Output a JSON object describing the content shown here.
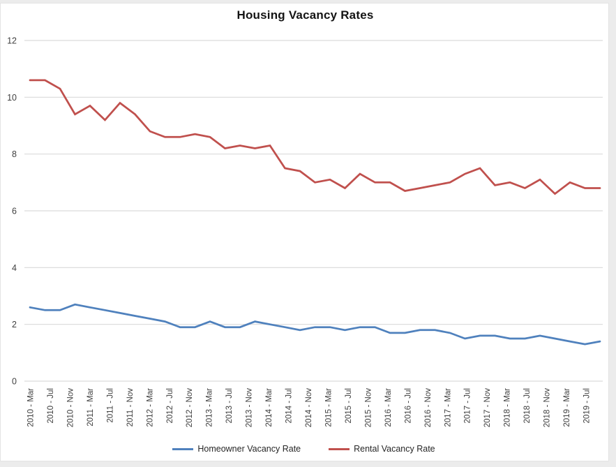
{
  "chart_data": {
    "type": "line",
    "title": "Housing Vacancy Rates",
    "xlabel": "",
    "ylabel": "",
    "ylim": [
      0,
      12
    ],
    "yticks": [
      0,
      2,
      4,
      6,
      8,
      10,
      12
    ],
    "grid": "horizontal-light-gray",
    "legend_position": "bottom-center",
    "x_labels": [
      "2010 - Mar",
      "2010 - Jul",
      "2010 - Nov",
      "2011 - Mar",
      "2011 - Jul",
      "2011 - Nov",
      "2012 - Mar",
      "2012 - Jul",
      "2012 - Nov",
      "2013 - Mar",
      "2013 - Jul",
      "2013 - Nov",
      "2014 - Mar",
      "2014 - Jul",
      "2014 - Nov",
      "2015 - Mar",
      "2015 - Jul",
      "2015 - Nov",
      "2016 - Mar",
      "2016 - Jul",
      "2016 - Nov",
      "2017 - Mar",
      "2017 - Jul",
      "2017 - Nov",
      "2018 - Mar",
      "2018 - Jul",
      "2018 - Nov",
      "2019 - Mar",
      "2019 - Jul"
    ],
    "series": [
      {
        "name": "Homeowner Vacancy Rate",
        "color": "#4F81BD",
        "values": [
          2.6,
          2.5,
          2.5,
          2.7,
          2.6,
          2.5,
          2.4,
          2.3,
          2.2,
          2.1,
          1.9,
          1.9,
          2.1,
          1.9,
          1.9,
          2.1,
          2.0,
          1.9,
          1.8,
          1.9,
          1.9,
          1.8,
          1.9,
          1.9,
          1.7,
          1.7,
          1.8,
          1.8,
          1.7,
          1.5,
          1.6,
          1.6,
          1.5,
          1.5,
          1.6,
          1.5,
          1.4,
          1.3,
          1.4
        ]
      },
      {
        "name": "Rental Vacancy Rate",
        "color": "#C0504D",
        "values": [
          10.6,
          10.6,
          10.3,
          9.4,
          9.7,
          9.2,
          9.8,
          9.4,
          8.8,
          8.6,
          8.6,
          8.7,
          8.6,
          8.2,
          8.3,
          8.2,
          8.3,
          7.5,
          7.4,
          7.0,
          7.1,
          6.8,
          7.3,
          7.0,
          7.0,
          6.7,
          6.8,
          6.9,
          7.0,
          7.3,
          7.5,
          6.9,
          7.0,
          6.8,
          7.1,
          6.6,
          7.0,
          6.8,
          6.8
        ]
      }
    ],
    "colors": {
      "gridline": "#d9d9d9",
      "tick_label": "#404040",
      "title": "#141414",
      "frame_edge": "#ececec"
    }
  }
}
